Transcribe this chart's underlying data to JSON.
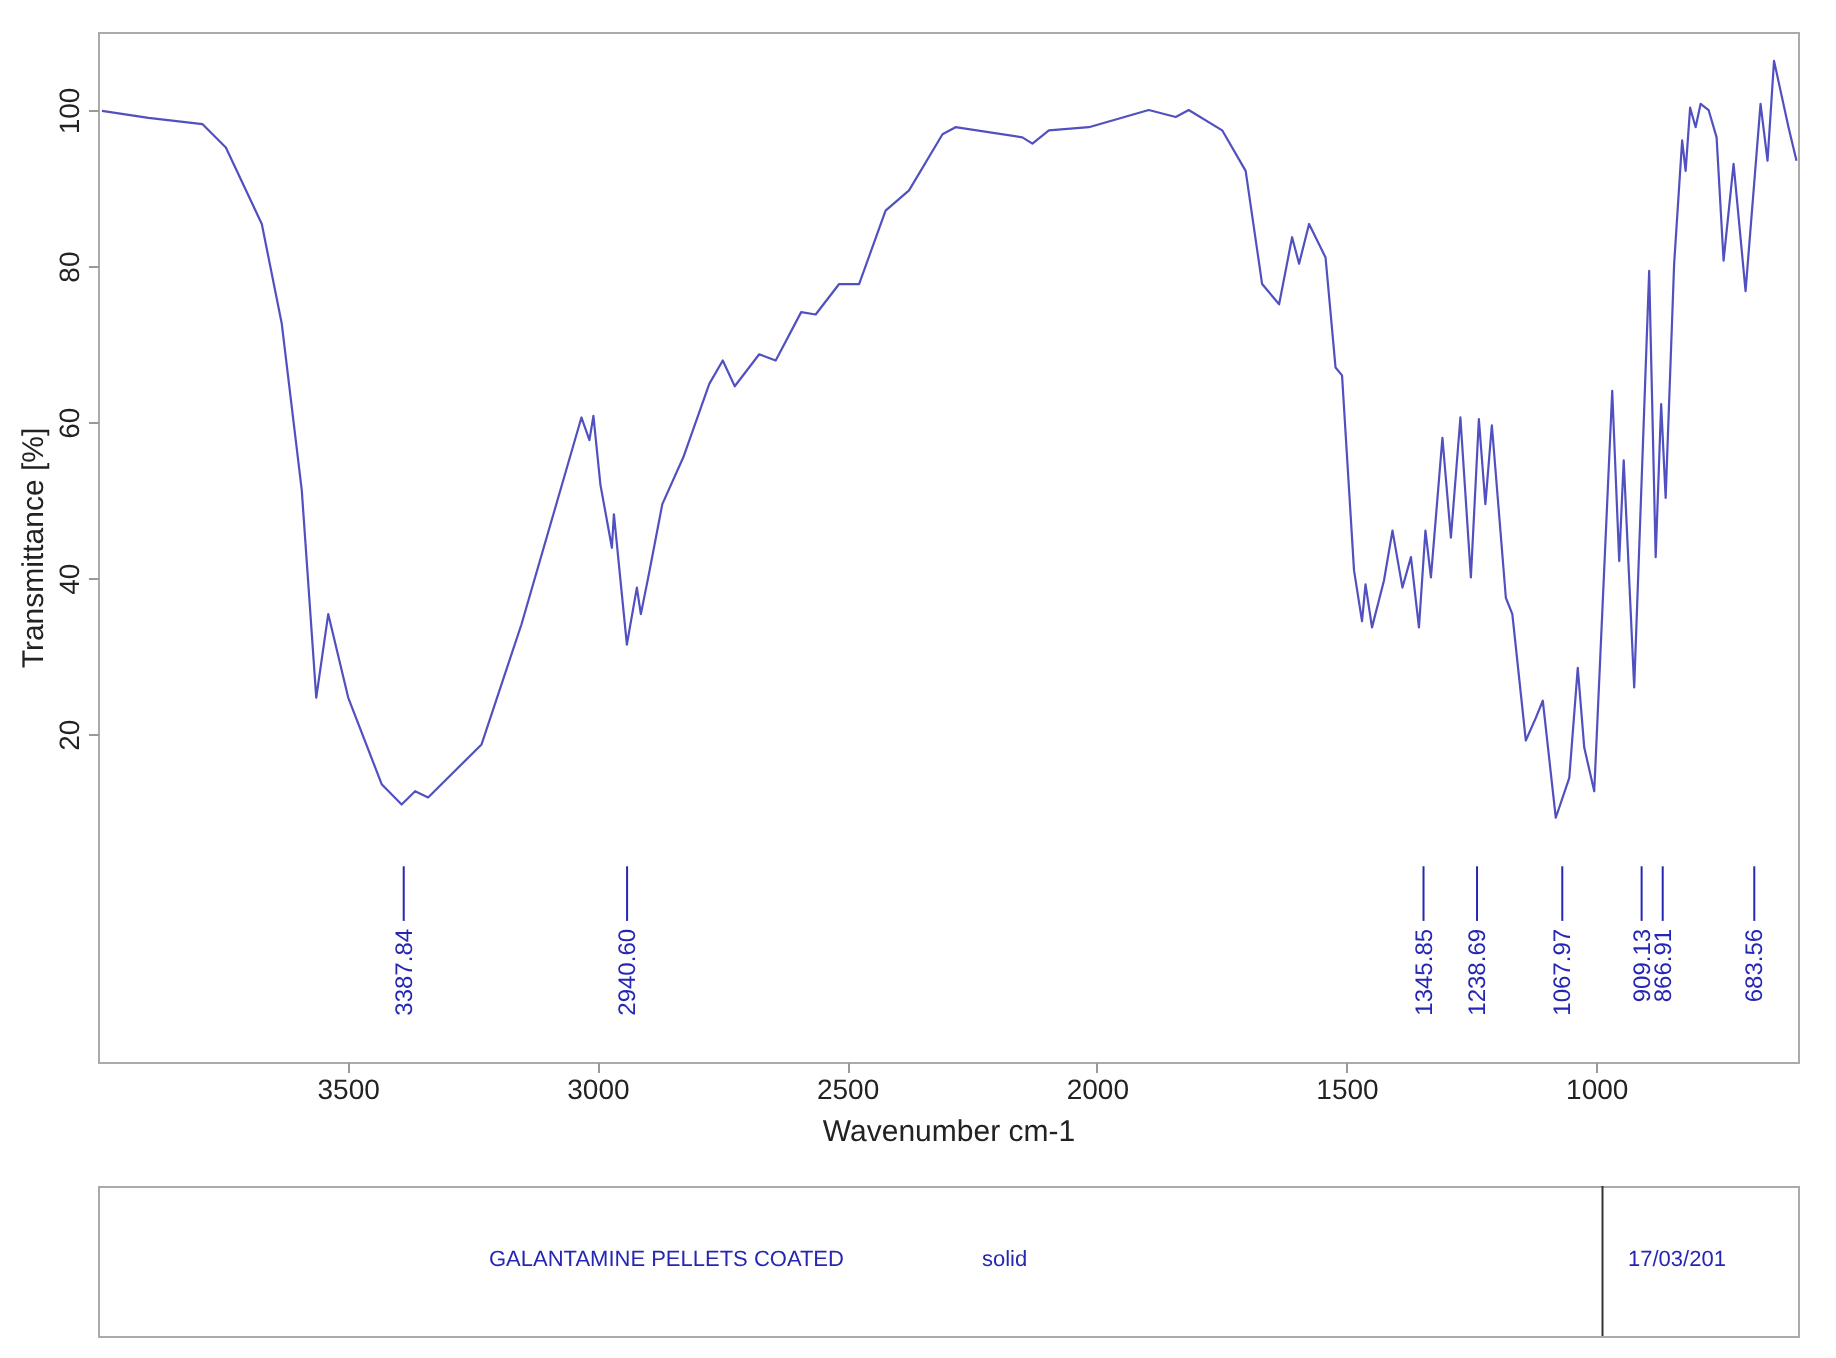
{
  "chart_data": {
    "type": "line",
    "xlabel": "Wavenumber cm-1",
    "ylabel": "Transmittance [%]",
    "xlim": [
      4000,
      596
    ],
    "ylim": [
      -22,
      110
    ],
    "xticks": [
      3500,
      3000,
      2500,
      2000,
      1500,
      1000
    ],
    "yticks": [
      20,
      40,
      60,
      80,
      100
    ],
    "grid": false,
    "ref_lines": [
      {
        "axis": "x",
        "value": 3387.84,
        "label": "3387.84"
      },
      {
        "axis": "x",
        "value": 2940.6,
        "label": "2940.60"
      },
      {
        "axis": "x",
        "value": 1345.85,
        "label": "1345.85"
      },
      {
        "axis": "x",
        "value": 1238.69,
        "label": "1238.69"
      },
      {
        "axis": "x",
        "value": 1067.97,
        "label": "1067.97"
      },
      {
        "axis": "x",
        "value": 909.13,
        "label": "909.13"
      },
      {
        "axis": "x",
        "value": 866.91,
        "label": "866.91"
      },
      {
        "axis": "x",
        "value": 683.56,
        "label": "683.56"
      }
    ],
    "series": [
      {
        "color": "#5050c0",
        "x": [
          3992,
          3899,
          3791,
          3744,
          3672,
          3632,
          3592,
          3563,
          3539,
          3499,
          3432,
          3392,
          3365,
          3339,
          3232,
          3152,
          3032,
          3016,
          3008,
          2994,
          2971,
          2967,
          2941,
          2921,
          2913,
          2897,
          2870,
          2828,
          2776,
          2749,
          2725,
          2676,
          2643,
          2592,
          2563,
          2516,
          2476,
          2423,
          2376,
          2309,
          2283,
          2149,
          2129,
          2096,
          2016,
          1896,
          1842,
          1816,
          1749,
          1702,
          1669,
          1635,
          1609,
          1595,
          1575,
          1542,
          1522,
          1509,
          1485,
          1469,
          1462,
          1449,
          1425,
          1408,
          1388,
          1371,
          1355,
          1342,
          1331,
          1308,
          1291,
          1272,
          1251,
          1235,
          1222,
          1209,
          1181,
          1168,
          1141,
          1121,
          1107,
          1081,
          1054,
          1037,
          1024,
          1004,
          968,
          954,
          945,
          924,
          894,
          881,
          870,
          861,
          844,
          828,
          821,
          812,
          801,
          791,
          775,
          759,
          745,
          725,
          701,
          671,
          657,
          644,
          615,
          599
        ],
        "values": [
          99.9,
          99,
          98.2,
          95.2,
          85.4,
          72.6,
          51.3,
          24.7,
          35.4,
          24.7,
          13.6,
          11.0,
          12.7,
          11.9,
          18.7,
          34.1,
          60.6,
          57.7,
          60.8,
          52,
          43.9,
          48.2,
          31.5,
          38.8,
          35.4,
          40.5,
          49.5,
          55.5,
          64.9,
          67.9,
          64.6,
          68.7,
          67.9,
          74.1,
          73.8,
          77.7,
          77.7,
          87.1,
          89.7,
          96.9,
          97.8,
          96.5,
          95.7,
          97.4,
          97.8,
          100,
          99.1,
          100,
          97.4,
          92.2,
          77.7,
          75.1,
          83.7,
          80.3,
          85.4,
          81.1,
          67,
          66,
          41,
          34.5,
          39.2,
          33.7,
          39.7,
          46.1,
          38.8,
          42.7,
          33.7,
          46.1,
          40.1,
          58,
          45.2,
          60.6,
          40.1,
          60.4,
          49.5,
          59.6,
          37.5,
          35.4,
          19.2,
          22.1,
          24.3,
          9.3,
          14.4,
          28.5,
          18.3,
          12.7,
          64,
          42.2,
          55.1,
          26,
          79.4,
          42.7,
          62.3,
          50.3,
          80.3,
          96.1,
          92.2,
          100.3,
          97.8,
          100.8,
          100,
          96.5,
          80.7,
          93.1,
          76.8,
          100.8,
          93.5,
          106.3,
          97.8,
          93.5
        ]
      }
    ],
    "annotations": [
      "GALANTAMINE PELLETS COATED",
      "solid",
      "17/03/201"
    ]
  }
}
